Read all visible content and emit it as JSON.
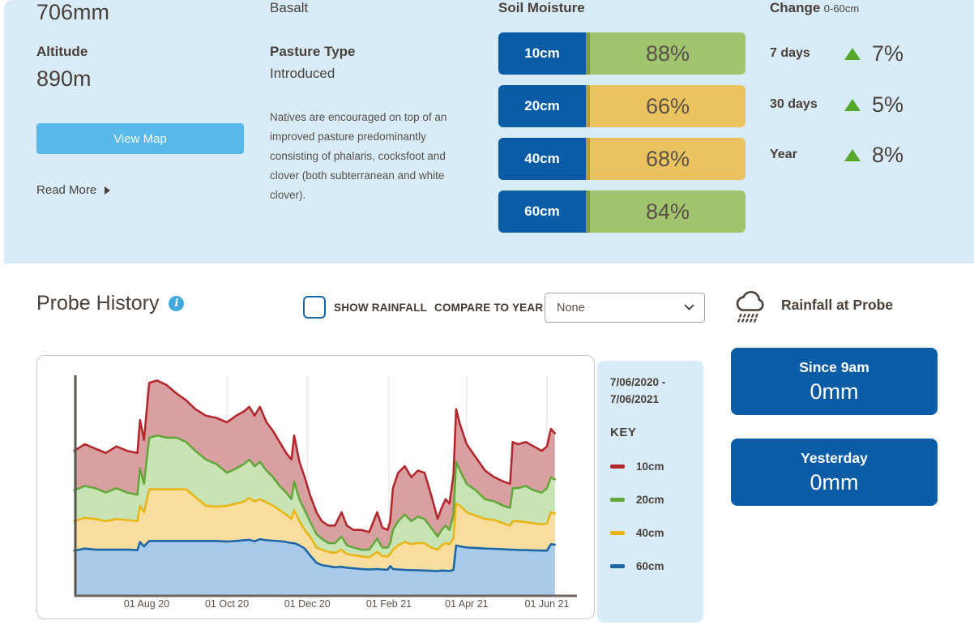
{
  "overview": {
    "rainfall_value": "706mm",
    "altitude_label": "Altitude",
    "altitude_value": "890m",
    "view_map_label": "View Map",
    "read_more_label": "Read More",
    "soil_type": "Basalt",
    "pasture_type_label": "Pasture Type",
    "pasture_type_value": "Introduced",
    "pasture_description": "Natives are encouraged on top of an improved pasture predominantly consisting of phalaris, cocksfoot and clover (both subterranean and white clover)."
  },
  "soil_moisture": {
    "title": "Soil Moisture",
    "bars": [
      {
        "depth": "10cm",
        "value": "88%",
        "color": "green"
      },
      {
        "depth": "20cm",
        "value": "66%",
        "color": "yellow"
      },
      {
        "depth": "40cm",
        "value": "68%",
        "color": "yellow"
      },
      {
        "depth": "60cm",
        "value": "84%",
        "color": "green"
      }
    ]
  },
  "change": {
    "title": "Change",
    "subtitle": "0-60cm",
    "rows": [
      {
        "label": "7 days",
        "direction": "up",
        "value": "7%"
      },
      {
        "label": "30 days",
        "direction": "up",
        "value": "5%"
      },
      {
        "label": "Year",
        "direction": "up",
        "value": "8%"
      }
    ]
  },
  "probe_history": {
    "title": "Probe History",
    "show_rainfall_label": "SHOW RAINFALL",
    "show_rainfall_checked": false,
    "compare_to_year_label": "COMPARE TO YEAR",
    "compare_selected": "None",
    "rainfall_at_probe_label": "Rainfall at Probe",
    "since_9am": {
      "label": "Since 9am",
      "value": "0mm"
    },
    "yesterday": {
      "label": "Yesterday",
      "value": "0mm"
    }
  },
  "chart_data": {
    "type": "area",
    "title": "Probe History soil moisture by depth",
    "range_lines": [
      "7/06/2020 -",
      "7/06/2021"
    ],
    "key_label": "KEY",
    "x_tick_labels": [
      "01 Aug 20",
      "01 Oct 20",
      "01 Dec 20",
      "01 Feb 21",
      "01 Apr 21",
      "01 Jun 21"
    ],
    "x_tick_days": [
      55,
      116,
      177,
      239,
      298,
      359
    ],
    "x_range_days": [
      0,
      365
    ],
    "y_axis_note": "no y-axis labels shown; values are relative level, percent of plot height",
    "grid": "vertical-only",
    "legend_position": "right-panel",
    "x_days": [
      0,
      8,
      16,
      24,
      32,
      40,
      48,
      50,
      53,
      57,
      63,
      70,
      78,
      85,
      92,
      100,
      108,
      116,
      123,
      129,
      133,
      137,
      141,
      146,
      151,
      156,
      161,
      165,
      167,
      171,
      175,
      179,
      184,
      188,
      193,
      198,
      203,
      207,
      212,
      218,
      224,
      230,
      234,
      238,
      240,
      242,
      246,
      251,
      256,
      261,
      266,
      271,
      276,
      279,
      282,
      285,
      288,
      290,
      293,
      298,
      305,
      312,
      319,
      326,
      331,
      333,
      337,
      343,
      349,
      355,
      359,
      362,
      365
    ],
    "series": [
      {
        "name": "10cm",
        "line_color": "#B3282D",
        "fill_color": "#D9A0A2",
        "values": [
          66,
          69,
          67,
          65,
          68,
          66,
          65,
          80,
          71,
          97,
          98,
          96,
          92,
          89,
          85,
          82,
          81,
          79,
          82,
          84,
          86,
          82,
          86,
          79,
          75,
          70,
          65,
          62,
          73,
          61,
          54,
          46,
          38,
          34,
          32,
          32,
          38,
          32,
          30,
          30,
          29,
          38,
          31,
          30,
          34,
          49,
          56,
          59,
          54,
          57,
          56,
          46,
          35,
          40,
          44,
          42,
          55,
          85,
          78,
          69,
          63,
          57,
          54,
          52,
          51,
          70,
          69,
          70,
          68,
          66,
          68,
          76,
          74
        ]
      },
      {
        "name": "20cm",
        "line_color": "#64A73B",
        "fill_color": "#C8E3B4",
        "values": [
          48,
          50,
          49,
          47,
          49,
          47,
          46,
          58,
          51,
          72,
          73,
          72,
          72,
          70,
          66,
          62,
          60,
          56,
          58,
          60,
          62,
          59,
          61,
          57,
          54,
          50,
          47,
          44,
          52,
          44,
          39,
          34,
          28,
          26,
          24,
          24,
          27,
          23,
          22,
          21,
          21,
          26,
          22,
          22,
          24,
          30,
          34,
          37,
          34,
          36,
          35,
          31,
          27,
          30,
          32,
          30,
          37,
          61,
          57,
          51,
          48,
          44,
          43,
          41,
          40,
          49,
          49,
          50,
          48,
          47,
          49,
          54,
          53
        ]
      },
      {
        "name": "40cm",
        "line_color": "#E9B616",
        "fill_color": "#F7DE9F",
        "values": [
          34,
          35.5,
          35,
          34,
          35,
          34.5,
          34,
          41,
          38,
          48.5,
          48.5,
          48.5,
          48.5,
          48.5,
          45,
          41,
          40.5,
          41,
          42,
          43,
          44.5,
          43,
          44,
          42.5,
          41,
          39,
          37,
          35,
          39,
          34,
          30,
          27,
          22,
          21,
          20,
          19.5,
          21,
          19,
          18.5,
          18,
          17.5,
          20,
          18,
          18,
          19,
          21,
          23,
          24.5,
          23.5,
          24,
          24,
          22,
          21,
          23,
          24,
          23.5,
          26,
          42,
          41,
          38,
          36.5,
          35,
          34.5,
          33,
          32,
          34,
          34,
          33.5,
          33,
          32.5,
          33,
          38,
          37.5
        ]
      },
      {
        "name": "60cm",
        "line_color": "#1C67A8",
        "fill_color": "#A9CAE9",
        "values": [
          20.5,
          21.5,
          21,
          21,
          21,
          21,
          20.8,
          24.5,
          22.5,
          25,
          25,
          25,
          25,
          25,
          25,
          25,
          25,
          24.7,
          25,
          25.3,
          25.5,
          24.8,
          25.8,
          25.3,
          25.1,
          24.9,
          24.5,
          24,
          24,
          23,
          21.5,
          18.5,
          15,
          14,
          13.5,
          13,
          13.2,
          12.8,
          12.5,
          12.2,
          12,
          12.2,
          12,
          11.9,
          13.5,
          12.2,
          12,
          11.8,
          11.7,
          11.6,
          11.5,
          11.4,
          11.2,
          11.5,
          11.4,
          11.3,
          11.8,
          22.9,
          22.5,
          22,
          21.8,
          21.5,
          21.4,
          21.2,
          21,
          21,
          20.9,
          20.8,
          20.7,
          20.6,
          20.6,
          23.5,
          23.3
        ]
      }
    ]
  },
  "colors": {
    "panel_bg": "#D7ECF8",
    "tile_blue": "#0B5CA6",
    "bar_green": "#A1C46E",
    "bar_yellow": "#EAC35F",
    "arrow_green": "#55A82A",
    "view_map_blue": "#57B8E9",
    "heading_text": "#4A4039"
  }
}
